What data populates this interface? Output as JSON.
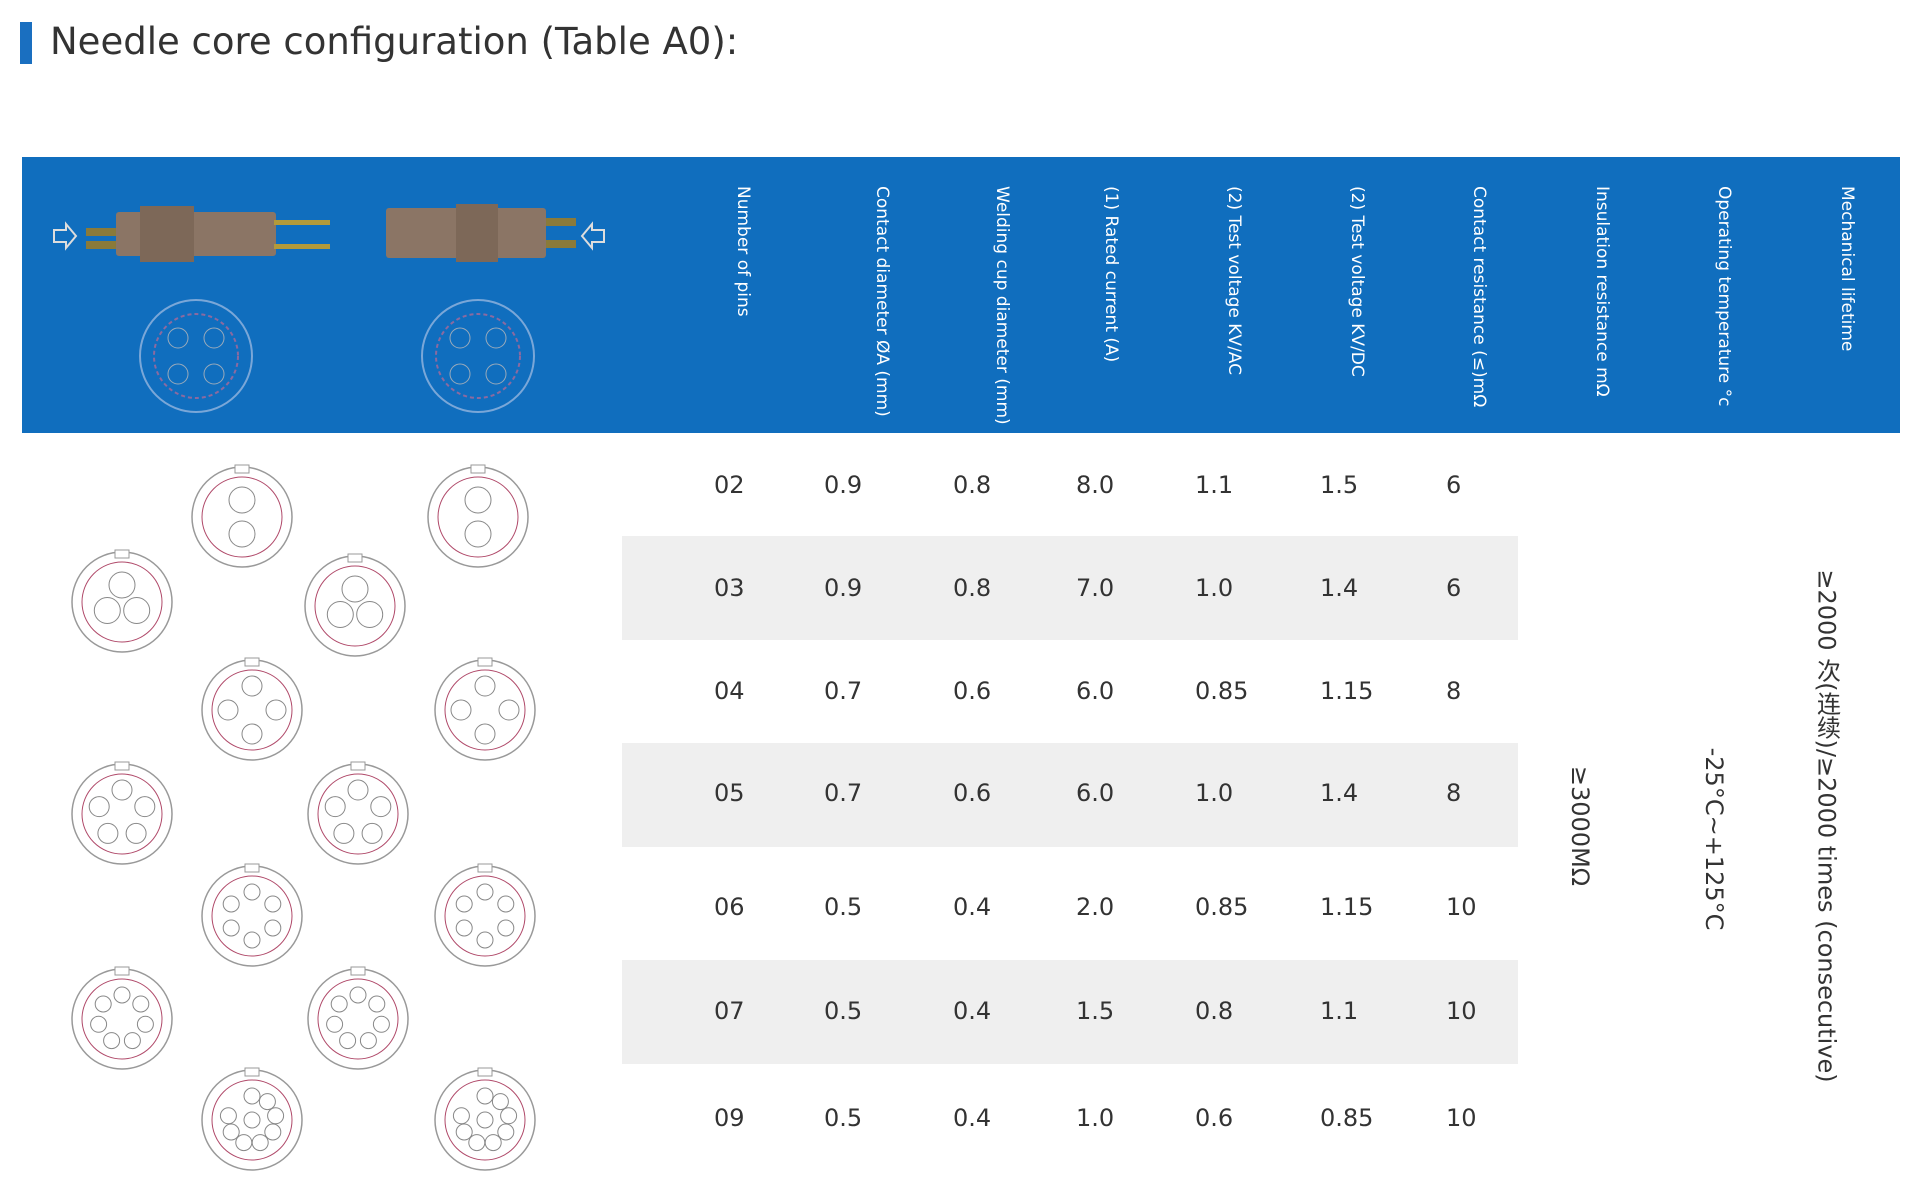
{
  "title": "Needle core configuration (Table A0):",
  "table": {
    "headers": [
      "Number of pins",
      "Contact diameter ØA (mm)",
      "Welding cup diameter (mm)",
      "(1) Rated current (A)",
      "(2) Test voltage KV/AC",
      "(2) Test voltage KV/DC",
      "Contact resistance (≤)mΩ",
      "Insulation resistance mΩ",
      "Operating temperature °c",
      "Mechanical lifetime"
    ],
    "rows": [
      [
        "02",
        "0.9",
        "0.8",
        "8.0",
        "1.1",
        "1.5",
        "6"
      ],
      [
        "03",
        "0.9",
        "0.8",
        "7.0",
        "1.0",
        "1.4",
        "6"
      ],
      [
        "04",
        "0.7",
        "0.6",
        "6.0",
        "0.85",
        "1.15",
        "8"
      ],
      [
        "05",
        "0.7",
        "0.6",
        "6.0",
        "1.0",
        "1.4",
        "8"
      ],
      [
        "06",
        "0.5",
        "0.4",
        "2.0",
        "0.85",
        "1.15",
        "10"
      ],
      [
        "07",
        "0.5",
        "0.4",
        "1.5",
        "0.8",
        "1.1",
        "10"
      ],
      [
        "09",
        "0.5",
        "0.4",
        "1.0",
        "0.6",
        "0.85",
        "10"
      ]
    ],
    "insulation": "≥3000MΩ",
    "temperature": "-25°C~+125°C",
    "lifetime": "≥2000 次(连续)/≥2000 times (consecutive)"
  }
}
